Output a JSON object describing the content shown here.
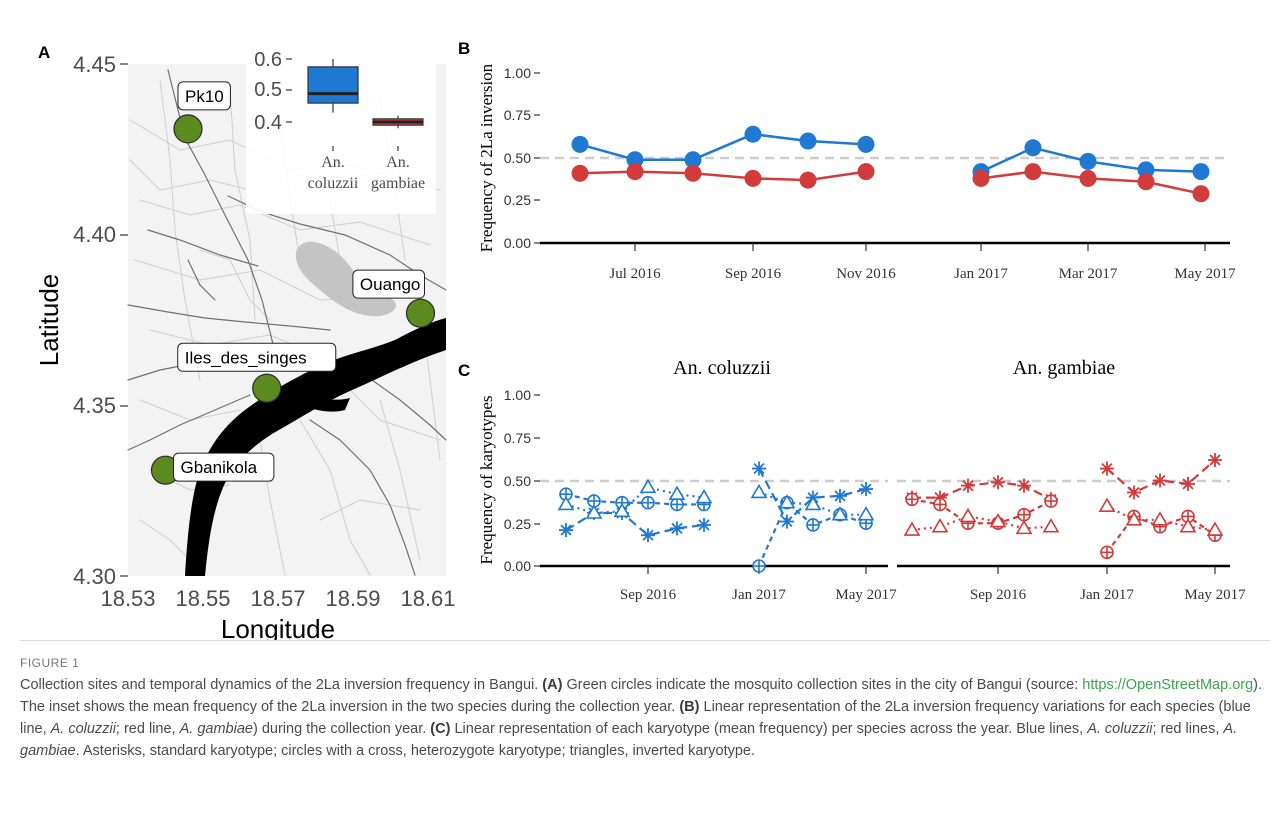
{
  "panel_labels": {
    "a": "A",
    "b": "B",
    "c": "C"
  },
  "map": {
    "xlabel": "Longitude",
    "ylabel": "Latitude",
    "x_ticks": [
      "18.53",
      "18.55",
      "18.57",
      "18.59",
      "18.61"
    ],
    "y_ticks": [
      "4.30",
      "4.35",
      "4.40",
      "4.45"
    ],
    "point_color": "#5b8a1f",
    "sites": [
      {
        "name": "Pk10",
        "lon": 18.546,
        "lat": 4.431
      },
      {
        "name": "Ouango",
        "lon": 18.608,
        "lat": 4.377
      },
      {
        "name": "Iles_des_singes",
        "lon": 18.567,
        "lat": 4.355
      },
      {
        "name": "Gbanikola",
        "lon": 18.54,
        "lat": 4.331
      }
    ]
  },
  "inset": {
    "y_ticks": [
      "0.6",
      "0.5",
      "0.4"
    ],
    "groups": [
      {
        "label_line1": "An.",
        "label_line2": "coluzzii",
        "color": "#1f78d1",
        "min": 0.43,
        "q1": 0.46,
        "median": 0.49,
        "q3": 0.575,
        "max": 0.6
      },
      {
        "label_line1": "An.",
        "label_line2": "gambiae",
        "color": "#d33b3b",
        "min": 0.38,
        "q1": 0.39,
        "median": 0.4,
        "q3": 0.41,
        "max": 0.42
      }
    ]
  },
  "panel_b": {
    "ylabel": "Frequency of 2La inversion",
    "y_ticks": [
      "1.00",
      "0.75",
      "0.50",
      "0.25",
      "0.00"
    ],
    "x_ticks": [
      "Jul 2016",
      "Sep 2016",
      "Nov 2016",
      "Jan 2017",
      "Mar 2017",
      "May 2017"
    ]
  },
  "panel_c": {
    "ylabel": "Frequency of karyotypes",
    "y_ticks": [
      "1.00",
      "0.75",
      "0.50",
      "0.25",
      "0.00"
    ],
    "facet_left_title": "An. coluzzii",
    "facet_right_title": "An. gambiae",
    "x_ticks_left": [
      "Sep 2016",
      "Jan 2017",
      "May 2017"
    ],
    "x_ticks_right": [
      "Sep 2016",
      "Jan 2017",
      "May 2017"
    ]
  },
  "chart_data": [
    {
      "type": "line",
      "panel": "B",
      "ylabel": "Frequency of 2La inversion",
      "ylim": [
        0,
        1
      ],
      "reference_line": 0.5,
      "x": [
        "2016-06",
        "2016-07",
        "2016-08",
        "2016-09",
        "2016-10",
        "2016-11",
        "2017-01",
        "2017-02",
        "2017-03",
        "2017-04",
        "2017-05"
      ],
      "series": [
        {
          "color": "#1f78d1",
          "values": [
            0.58,
            0.49,
            0.49,
            0.64,
            0.6,
            0.58,
            0.42,
            0.56,
            0.48,
            0.43,
            0.42
          ]
        },
        {
          "color": "#d33b3b",
          "values": [
            0.41,
            0.42,
            0.41,
            0.38,
            0.37,
            0.42,
            0.38,
            0.42,
            0.38,
            0.36,
            0.29
          ]
        }
      ]
    },
    {
      "type": "line",
      "panel": "C",
      "facet": "An. coluzzii",
      "ylabel": "Frequency of karyotypes",
      "ylim": [
        0,
        1
      ],
      "reference_line": 0.5,
      "x": [
        "2016-06",
        "2016-07",
        "2016-08",
        "2016-09",
        "2016-10",
        "2016-11",
        "2017-01",
        "2017-02",
        "2017-03",
        "2017-04",
        "2017-05"
      ],
      "series": [
        {
          "marker": "asterisk",
          "values": [
            0.21,
            0.31,
            0.31,
            0.18,
            0.22,
            0.24,
            0.57,
            0.26,
            0.4,
            0.41,
            0.45
          ]
        },
        {
          "marker": "circle-cross",
          "values": [
            0.42,
            0.38,
            0.37,
            0.37,
            0.36,
            0.36,
            0.0,
            0.37,
            0.24,
            0.3,
            0.25
          ]
        },
        {
          "marker": "triangle",
          "values": [
            0.36,
            0.31,
            0.32,
            0.46,
            0.42,
            0.4,
            0.43,
            0.37,
            0.36,
            0.3,
            0.3
          ]
        }
      ]
    },
    {
      "type": "line",
      "panel": "C",
      "facet": "An. gambiae",
      "ylabel": "Frequency of karyotypes",
      "ylim": [
        0,
        1
      ],
      "reference_line": 0.5,
      "x": [
        "2016-06",
        "2016-07",
        "2016-08",
        "2016-09",
        "2016-10",
        "2016-11",
        "2017-01",
        "2017-02",
        "2017-03",
        "2017-04",
        "2017-05"
      ],
      "series": [
        {
          "marker": "asterisk",
          "values": [
            0.4,
            0.4,
            0.47,
            0.49,
            0.47,
            0.39,
            0.57,
            0.43,
            0.5,
            0.48,
            0.62
          ]
        },
        {
          "marker": "circle-cross",
          "values": [
            0.39,
            0.36,
            0.25,
            0.25,
            0.3,
            0.38,
            0.08,
            0.29,
            0.23,
            0.29,
            0.18
          ]
        },
        {
          "marker": "triangle",
          "values": [
            0.21,
            0.23,
            0.29,
            0.26,
            0.22,
            0.23,
            0.35,
            0.27,
            0.27,
            0.23,
            0.21
          ]
        }
      ]
    }
  ],
  "caption": {
    "figure_label": "FIGURE 1",
    "line1": "Collection sites and temporal dynamics of the 2La inversion frequency in Bangui.",
    "a_label": "(A)",
    "a_text1": "Green circles indicate the mosquito collection sites in the city of Bangui (source:",
    "link": "https://OpenStreetMap.org",
    "a_text2": "). The inset shows the mean frequency of the 2La inversion in the two species during the collection year.",
    "b_label": "(B)",
    "b_text1": "Linear representation of the 2La inversion frequency variations for each species (blue line,",
    "b_sp1": "A. coluzzii",
    "b_text2": "; red line,",
    "b_sp2": "A. gambiae",
    "b_text3": ") during the collection year.",
    "c_label": "(C)",
    "c_text1": "Linear representation of each karyotype (mean frequency) per species across the year. Blue lines,",
    "c_sp1": "A. coluzzii",
    "c_text2": "; red lines,",
    "c_sp2": "A. gambiae",
    "c_text3": ". Asterisks, standard karyotype; circles with a cross, heterozygote karyotype; triangles, inverted karyotype."
  }
}
